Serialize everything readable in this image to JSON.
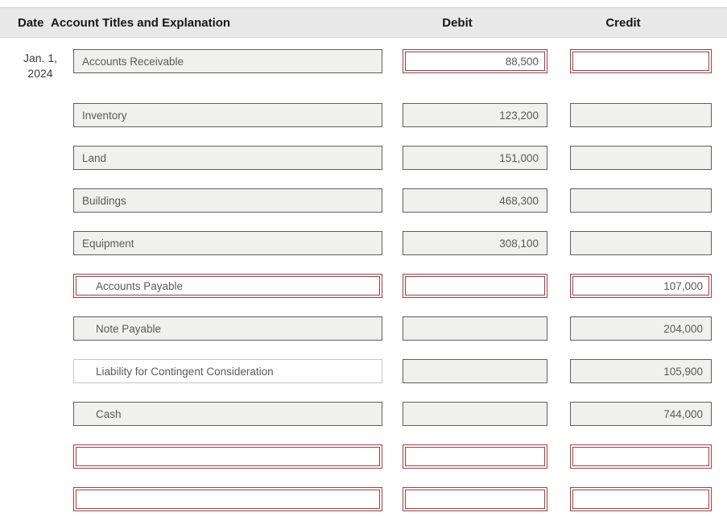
{
  "header": {
    "date": "Date",
    "account": "Account Titles and Explanation",
    "debit": "Debit",
    "credit": "Credit"
  },
  "entry_date": {
    "line1": "Jan. 1,",
    "line2": "2024"
  },
  "colors": {
    "active_border": "#a33f3f",
    "filled_border": "#5f5f5f",
    "filled_background": "#f0f0ee",
    "header_background": "#e8e8e8"
  },
  "rows": [
    {
      "account": "Accounts Receivable",
      "debit": "88,500",
      "credit": ""
    },
    {
      "account": "Inventory",
      "debit": "123,200",
      "credit": ""
    },
    {
      "account": "Land",
      "debit": "151,000",
      "credit": ""
    },
    {
      "account": "Buildings",
      "debit": "468,300",
      "credit": ""
    },
    {
      "account": "Equipment",
      "debit": "308,100",
      "credit": ""
    },
    {
      "account": "Accounts Payable",
      "debit": "",
      "credit": "107,000"
    },
    {
      "account": "Note Payable",
      "debit": "",
      "credit": "204,000"
    },
    {
      "account": "Liability for Contingent Consideration",
      "debit": "",
      "credit": "105,900"
    },
    {
      "account": "Cash",
      "debit": "",
      "credit": "744,000"
    },
    {
      "account": "",
      "debit": "",
      "credit": ""
    },
    {
      "account": "",
      "debit": "",
      "credit": ""
    }
  ]
}
